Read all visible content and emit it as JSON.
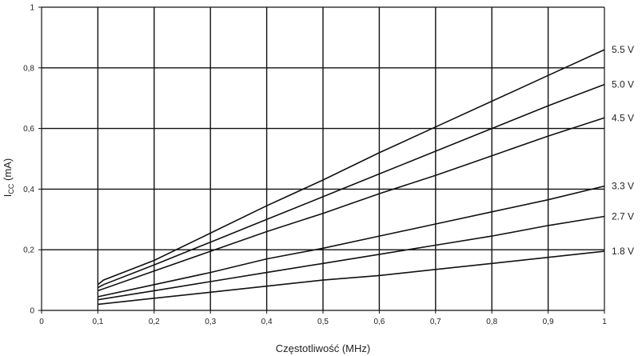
{
  "chart_data": {
    "type": "line",
    "xlabel": "Częstotliwość (MHz)",
    "ylabel_main": "I",
    "ylabel_sub": "CC",
    "ylabel_unit": " (mA)",
    "xlim": [
      0,
      1
    ],
    "ylim": [
      0,
      1
    ],
    "x_ticks": [
      {
        "v": 0,
        "label": "0"
      },
      {
        "v": 0.1,
        "label": "0,1"
      },
      {
        "v": 0.2,
        "label": "0,2"
      },
      {
        "v": 0.3,
        "label": "0,3"
      },
      {
        "v": 0.4,
        "label": "0,4"
      },
      {
        "v": 0.5,
        "label": "0,5"
      },
      {
        "v": 0.6,
        "label": "0,6"
      },
      {
        "v": 0.7,
        "label": "0,7"
      },
      {
        "v": 0.8,
        "label": "0,8"
      },
      {
        "v": 0.9,
        "label": "0,9"
      },
      {
        "v": 1,
        "label": "1"
      }
    ],
    "y_ticks": [
      {
        "v": 0,
        "label": "0"
      },
      {
        "v": 0.2,
        "label": "0,2"
      },
      {
        "v": 0.4,
        "label": "0,4"
      },
      {
        "v": 0.6,
        "label": "0,6"
      },
      {
        "v": 0.8,
        "label": "0,8"
      },
      {
        "v": 1,
        "label": "1"
      }
    ],
    "grid": true,
    "legend": "none",
    "series": [
      {
        "name": "5.5 V",
        "x": [
          0.1,
          0.11,
          0.2,
          0.3,
          0.4,
          0.5,
          0.6,
          0.7,
          0.8,
          0.9,
          1.0
        ],
        "y": [
          0.085,
          0.1,
          0.165,
          0.255,
          0.345,
          0.43,
          0.52,
          0.605,
          0.69,
          0.775,
          0.86
        ]
      },
      {
        "name": "5.0 V",
        "x": [
          0.1,
          0.11,
          0.2,
          0.3,
          0.4,
          0.5,
          0.6,
          0.7,
          0.8,
          0.9,
          1.0
        ],
        "y": [
          0.075,
          0.085,
          0.15,
          0.225,
          0.3,
          0.375,
          0.45,
          0.525,
          0.6,
          0.675,
          0.745
        ]
      },
      {
        "name": "4.5 V",
        "x": [
          0.1,
          0.2,
          0.3,
          0.4,
          0.5,
          0.6,
          0.7,
          0.8,
          0.9,
          1.0
        ],
        "y": [
          0.065,
          0.13,
          0.195,
          0.26,
          0.32,
          0.385,
          0.445,
          0.51,
          0.575,
          0.635
        ]
      },
      {
        "name": "3.3 V",
        "x": [
          0.1,
          0.2,
          0.3,
          0.4,
          0.5,
          0.6,
          0.7,
          0.8,
          0.9,
          1.0
        ],
        "y": [
          0.045,
          0.085,
          0.125,
          0.17,
          0.205,
          0.245,
          0.285,
          0.325,
          0.365,
          0.41
        ]
      },
      {
        "name": "2.7 V",
        "x": [
          0.1,
          0.2,
          0.3,
          0.4,
          0.5,
          0.6,
          0.7,
          0.8,
          0.9,
          1.0
        ],
        "y": [
          0.035,
          0.065,
          0.095,
          0.125,
          0.155,
          0.185,
          0.215,
          0.245,
          0.28,
          0.31
        ]
      },
      {
        "name": "1.8 V",
        "x": [
          0.1,
          0.2,
          0.3,
          0.4,
          0.5,
          0.6,
          0.7,
          0.8,
          0.9,
          1.0
        ],
        "y": [
          0.02,
          0.04,
          0.06,
          0.08,
          0.1,
          0.115,
          0.135,
          0.155,
          0.175,
          0.195
        ]
      }
    ]
  }
}
